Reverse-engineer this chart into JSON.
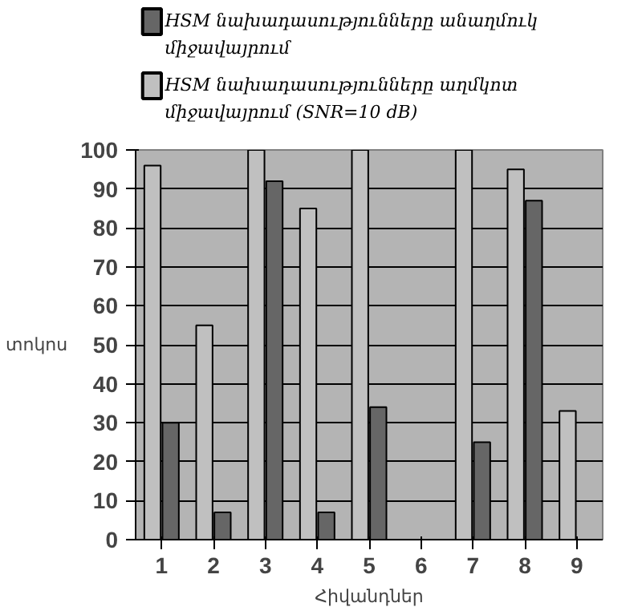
{
  "chart_data": {
    "type": "bar",
    "categories": [
      "1",
      "2",
      "3",
      "4",
      "5",
      "6",
      "7",
      "8",
      "9"
    ],
    "xlabel": "Հիվանդներ",
    "ylabel": "տոկոս",
    "series": [
      {
        "name": "HSM նախադասությունները աղմկոտ միջավայրում (SNR=10 dB)",
        "color": "#c0c0c0",
        "values": [
          96,
          55,
          100,
          85,
          100,
          0,
          100,
          95,
          33
        ]
      },
      {
        "name": "HSM նախադասությունները անաղմուկ միջավայրում",
        "color": "#666666",
        "values": [
          30,
          7,
          92,
          7,
          34,
          0,
          25,
          87,
          0
        ]
      }
    ],
    "ylim": [
      0,
      100
    ],
    "yticks": [
      0,
      10,
      20,
      30,
      40,
      50,
      60,
      70,
      80,
      90,
      100
    ],
    "grid": "y",
    "legend": "top left"
  }
}
